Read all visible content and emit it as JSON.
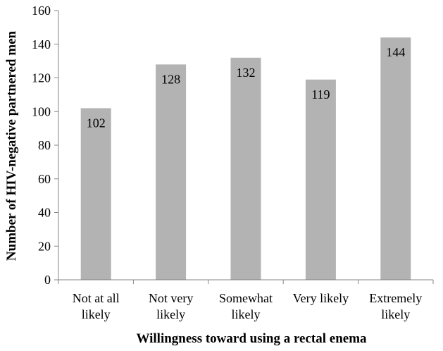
{
  "chart_data": {
    "type": "bar",
    "categories": [
      [
        "Not at all",
        "likely"
      ],
      [
        "Not very",
        "likely"
      ],
      [
        "Somewhat",
        "likely"
      ],
      [
        "Very likely"
      ],
      [
        "Extremely",
        "likely"
      ]
    ],
    "values": [
      102,
      128,
      132,
      119,
      144
    ],
    "data_labels": [
      "102",
      "128",
      "132",
      "119",
      "144"
    ],
    "title": "",
    "xlabel": "Willingness toward using a rectal enema",
    "ylabel": "Number of HIV-negative partnered men",
    "ylim": [
      0,
      160
    ],
    "yticks": [
      0,
      20,
      40,
      60,
      80,
      100,
      120,
      140,
      160
    ],
    "bar_color": "#b3b3b3",
    "axis_color": "#868686",
    "grid": false,
    "legend": "none"
  }
}
